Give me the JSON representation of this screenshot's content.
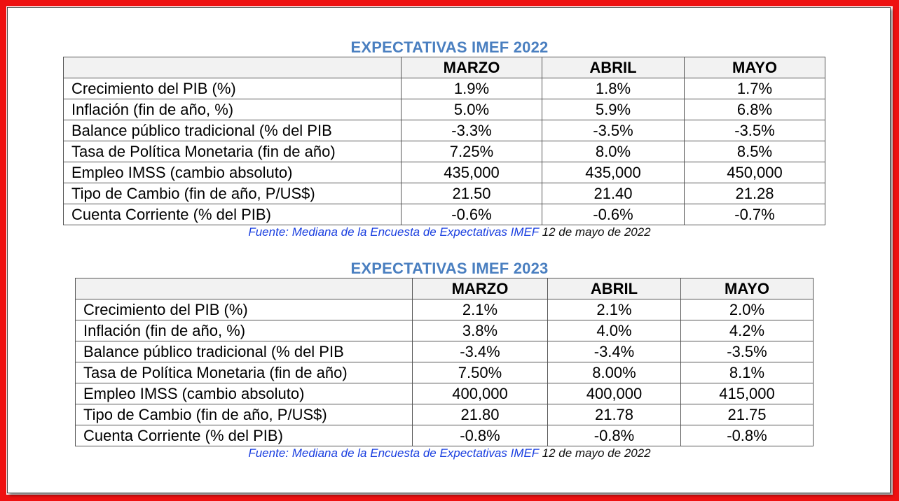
{
  "tables": [
    {
      "title": "EXPECTATIVAS IMEF 2022",
      "columns": [
        "MARZO",
        "ABRIL",
        "MAYO"
      ],
      "rows": [
        {
          "label": "Crecimiento del PIB (%)",
          "values": [
            "1.9%",
            "1.8%",
            "1.7%"
          ]
        },
        {
          "label": "Inflación (fin de año, %)",
          "values": [
            "5.0%",
            "5.9%",
            "6.8%"
          ]
        },
        {
          "label": "Balance público tradicional (% del PIB",
          "values": [
            "-3.3%",
            "-3.5%",
            "-3.5%"
          ]
        },
        {
          "label": "Tasa de Política Monetaria (fin de año)",
          "values": [
            "7.25%",
            "8.0%",
            "8.5%"
          ]
        },
        {
          "label": "Empleo IMSS (cambio absoluto)",
          "values": [
            "435,000",
            "435,000",
            "450,000"
          ]
        },
        {
          "label": "Tipo de Cambio (fin de año, P/US$)",
          "values": [
            "21.50",
            "21.40",
            "21.28"
          ]
        },
        {
          "label": "Cuenta Corriente (% del PIB)",
          "values": [
            "-0.6%",
            "-0.6%",
            "-0.7%"
          ]
        }
      ],
      "source_label": "Fuente: Mediana de la Encuesta de Expectativas IMEF",
      "source_date": "12 de mayo de 2022"
    },
    {
      "title": "EXPECTATIVAS IMEF 2023",
      "columns": [
        "MARZO",
        "ABRIL",
        "MAYO"
      ],
      "rows": [
        {
          "label": "Crecimiento del PIB (%)",
          "values": [
            "2.1%",
            "2.1%",
            "2.0%"
          ]
        },
        {
          "label": "Inflación (fin de año, %)",
          "values": [
            "3.8%",
            "4.0%",
            "4.2%"
          ]
        },
        {
          "label": "Balance público tradicional (% del PIB",
          "values": [
            "-3.4%",
            "-3.4%",
            "-3.5%"
          ]
        },
        {
          "label": "Tasa de Política Monetaria (fin de año)",
          "values": [
            "7.50%",
            "8.00%",
            "8.1%"
          ]
        },
        {
          "label": "Empleo IMSS (cambio absoluto)",
          "values": [
            "400,000",
            "400,000",
            "415,000"
          ]
        },
        {
          "label": "Tipo de Cambio (fin de año, P/US$)",
          "values": [
            "21.80",
            "21.78",
            "21.75"
          ]
        },
        {
          "label": "Cuenta Corriente (% del PIB)",
          "values": [
            "-0.8%",
            "-0.8%",
            "-0.8%"
          ]
        }
      ],
      "source_label": "Fuente: Mediana de la Encuesta de Expectativas IMEF",
      "source_date": "12 de mayo de 2022"
    }
  ],
  "colors": {
    "frame": "#ee1111",
    "title": "#4a7fc0",
    "header_bg": "#f2f2f2",
    "source_label": "#1a3fe0"
  }
}
